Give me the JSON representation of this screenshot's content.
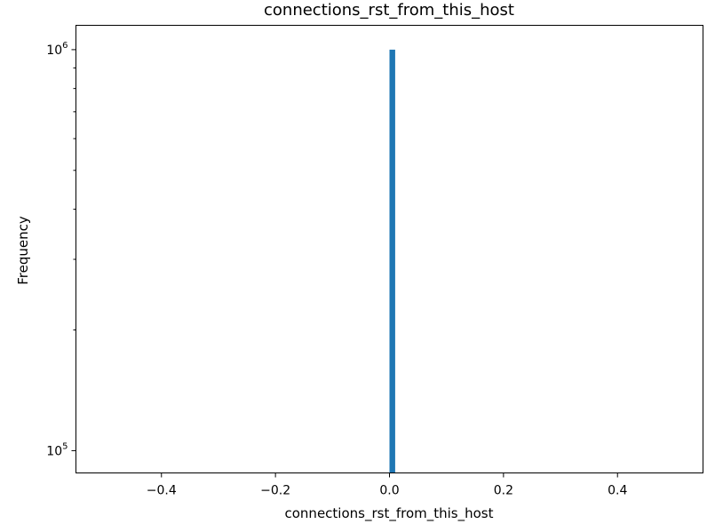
{
  "chart_data": {
    "type": "bar",
    "title": "connections_rst_from_this_host",
    "xlabel": "connections_rst_from_this_host",
    "ylabel": "Frequency",
    "yscale": "log",
    "xlim": [
      -0.55,
      0.55
    ],
    "ylim": [
      88000,
      1150000
    ],
    "grid": false,
    "colors": {
      "bar": "#1f77b4",
      "axes": "#000000",
      "background": "#ffffff"
    },
    "xticks": [
      {
        "value": -0.4,
        "label": "−0.4"
      },
      {
        "value": -0.2,
        "label": "−0.2"
      },
      {
        "value": 0.0,
        "label": "0.0"
      },
      {
        "value": 0.2,
        "label": "0.2"
      },
      {
        "value": 0.4,
        "label": "0.4"
      }
    ],
    "yticks_major": [
      {
        "value": 100000,
        "base": "10",
        "exp": "5"
      },
      {
        "value": 1000000,
        "base": "10",
        "exp": "6"
      }
    ],
    "yticks_minor": [
      200000,
      300000,
      400000,
      500000,
      600000,
      700000,
      800000,
      900000
    ],
    "bars": [
      {
        "x0": 0.0,
        "x1": 0.01,
        "value": 1000000
      }
    ]
  }
}
